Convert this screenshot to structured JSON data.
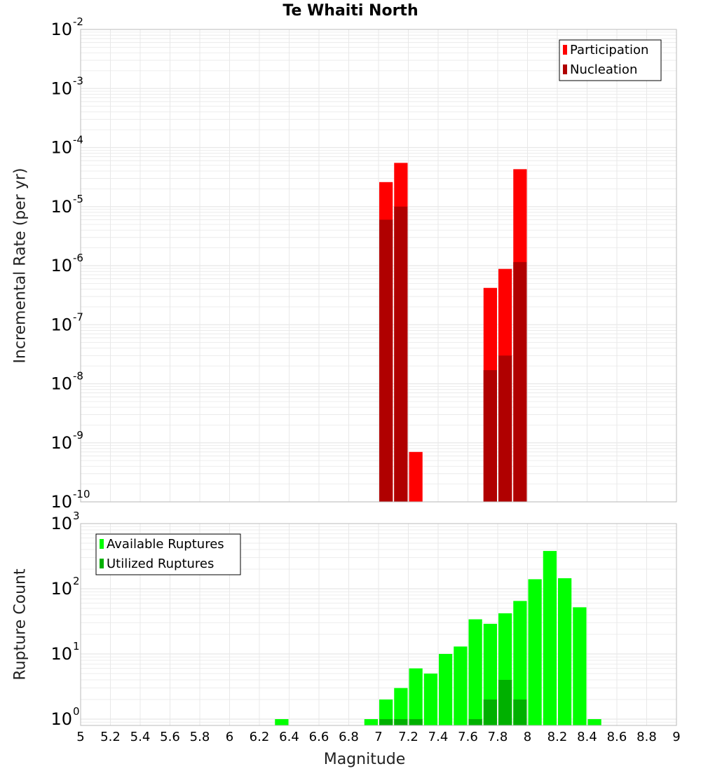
{
  "title": "Te Whaiti North",
  "colors": {
    "participation": "#ff0000",
    "nucleation": "#b00000",
    "available": "#00ff00",
    "utilized": "#00b000",
    "grid": "#e8e8e8",
    "frame": "#bbbbbb"
  },
  "chart_data": [
    {
      "type": "bar",
      "panel": "rates",
      "ylabel": "Incremental Rate (per yr)",
      "yscale": "log",
      "ylim": [
        1e-10,
        0.01
      ],
      "xlim": [
        5,
        9
      ],
      "bin_width": 0.1,
      "y_ticks": [
        {
          "base": "10",
          "exp": "-10",
          "value": 1e-10
        },
        {
          "base": "10",
          "exp": "-9",
          "value": 1e-09
        },
        {
          "base": "10",
          "exp": "-8",
          "value": 1e-08
        },
        {
          "base": "10",
          "exp": "-7",
          "value": 1e-07
        },
        {
          "base": "10",
          "exp": "-6",
          "value": 1e-06
        },
        {
          "base": "10",
          "exp": "-5",
          "value": 1e-05
        },
        {
          "base": "10",
          "exp": "-4",
          "value": 0.0001
        },
        {
          "base": "10",
          "exp": "-3",
          "value": 0.001
        },
        {
          "base": "10",
          "exp": "-2",
          "value": 0.01
        }
      ],
      "legend": [
        "Participation",
        "Nucleation"
      ],
      "legend_position": "top-right",
      "series": [
        {
          "name": "Participation",
          "points": [
            {
              "x": 7.05,
              "y": 2.6e-05
            },
            {
              "x": 7.15,
              "y": 5.5e-05
            },
            {
              "x": 7.25,
              "y": 7e-10
            },
            {
              "x": 7.75,
              "y": 4.2e-07
            },
            {
              "x": 7.85,
              "y": 8.8e-07
            },
            {
              "x": 7.95,
              "y": 4.3e-05
            }
          ]
        },
        {
          "name": "Nucleation",
          "points": [
            {
              "x": 7.05,
              "y": 6e-06
            },
            {
              "x": 7.15,
              "y": 1e-05
            },
            {
              "x": 7.75,
              "y": 1.7e-08
            },
            {
              "x": 7.85,
              "y": 3e-08
            },
            {
              "x": 7.95,
              "y": 1.15e-06
            }
          ]
        }
      ]
    },
    {
      "type": "bar",
      "panel": "counts",
      "ylabel": "Rupture Count",
      "xlabel": "Magnitude",
      "yscale": "log",
      "ylim": [
        0.8,
        1000
      ],
      "xlim": [
        5,
        9
      ],
      "bin_width": 0.1,
      "x_ticks": [
        "5",
        "5.2",
        "5.4",
        "5.6",
        "5.8",
        "6",
        "6.2",
        "6.4",
        "6.6",
        "6.8",
        "7",
        "7.2",
        "7.4",
        "7.6",
        "7.8",
        "8",
        "8.2",
        "8.4",
        "8.6",
        "8.8",
        "9"
      ],
      "y_ticks": [
        {
          "base": "10",
          "exp": "0",
          "value": 1
        },
        {
          "base": "10",
          "exp": "1",
          "value": 10
        },
        {
          "base": "10",
          "exp": "2",
          "value": 100
        },
        {
          "base": "10",
          "exp": "3",
          "value": 1000
        }
      ],
      "legend": [
        "Available Ruptures",
        "Utilized Ruptures"
      ],
      "legend_position": "top-left",
      "series": [
        {
          "name": "Available Ruptures",
          "points": [
            {
              "x": 6.35,
              "y": 1
            },
            {
              "x": 6.95,
              "y": 1
            },
            {
              "x": 7.05,
              "y": 2
            },
            {
              "x": 7.15,
              "y": 3
            },
            {
              "x": 7.25,
              "y": 6
            },
            {
              "x": 7.35,
              "y": 5
            },
            {
              "x": 7.45,
              "y": 10
            },
            {
              "x": 7.55,
              "y": 13
            },
            {
              "x": 7.65,
              "y": 34
            },
            {
              "x": 7.75,
              "y": 29
            },
            {
              "x": 7.85,
              "y": 42
            },
            {
              "x": 7.95,
              "y": 65
            },
            {
              "x": 8.05,
              "y": 140
            },
            {
              "x": 8.15,
              "y": 380
            },
            {
              "x": 8.25,
              "y": 145
            },
            {
              "x": 8.35,
              "y": 52
            },
            {
              "x": 8.45,
              "y": 1
            }
          ]
        },
        {
          "name": "Utilized Ruptures",
          "points": [
            {
              "x": 7.05,
              "y": 1
            },
            {
              "x": 7.15,
              "y": 1
            },
            {
              "x": 7.25,
              "y": 1
            },
            {
              "x": 7.65,
              "y": 1
            },
            {
              "x": 7.75,
              "y": 2
            },
            {
              "x": 7.85,
              "y": 4
            },
            {
              "x": 7.95,
              "y": 2
            }
          ]
        }
      ]
    }
  ]
}
